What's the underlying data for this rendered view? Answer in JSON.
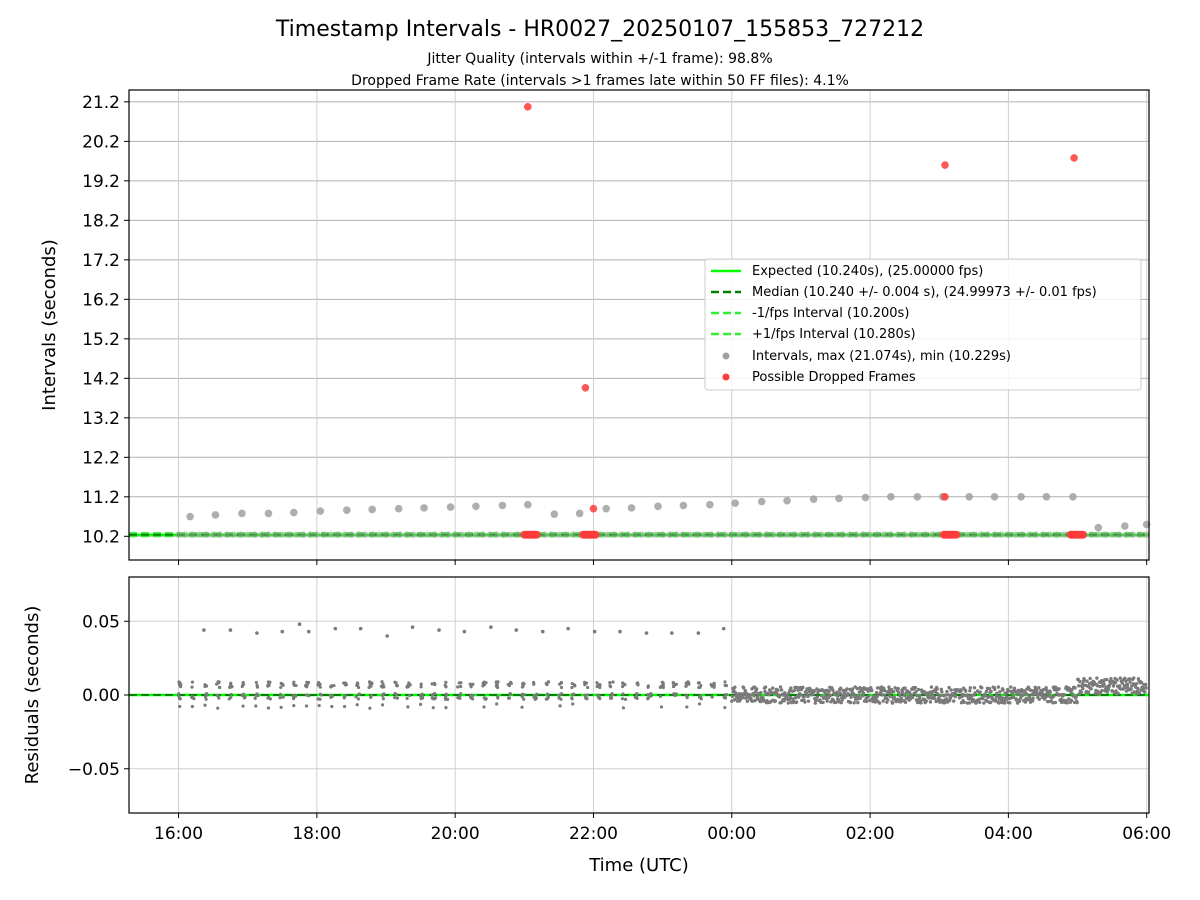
{
  "title": "Timestamp Intervals - HR0027_20250107_155853_727212",
  "subtitle_lines": [
    "Jitter Quality (intervals within +/-1 frame): 98.8%",
    "Dropped Frame Rate (intervals >1 frames late within 50 FF files): 4.1%"
  ],
  "colors": {
    "expected": "#00ff00",
    "median": "#008000",
    "fps_interval": "#33ee33",
    "intervals": "#a0a0a0",
    "dropped": "#ff3b3b",
    "residuals": "#7a7a7a",
    "grid": "#b0b0b0"
  },
  "chart_data": [
    {
      "type": "scatter",
      "panel": "top",
      "xlabel": "",
      "ylabel": "Intervals (seconds)",
      "ylim": [
        9.6,
        21.5
      ],
      "yticks": [
        "10.2",
        "11.2",
        "12.2",
        "13.2",
        "14.2",
        "15.2",
        "16.2",
        "17.2",
        "18.2",
        "19.2",
        "20.2",
        "21.2"
      ],
      "grid": true,
      "legend_position": "center-right",
      "reference_lines": {
        "expected": 10.24,
        "median": 10.24,
        "minus_fps": 10.2,
        "plus_fps": 10.28
      },
      "series": [
        {
          "name": "Intervals, max (21.074s), min (10.229s)",
          "x": [
            "16:10",
            "16:32",
            "16:55",
            "17:18",
            "17:40",
            "18:03",
            "18:26",
            "18:48",
            "19:11",
            "19:33",
            "19:56",
            "20:18",
            "20:41",
            "21:03",
            "21:26",
            "21:48",
            "22:11",
            "22:33",
            "22:56",
            "23:18",
            "23:41",
            "00:03",
            "00:26",
            "00:48",
            "01:11",
            "01:33",
            "01:56",
            "02:18",
            "02:41",
            "03:03",
            "03:26",
            "03:48",
            "04:11",
            "04:33",
            "04:56",
            "05:18",
            "05:41",
            "06:00"
          ],
          "y": [
            10.7,
            10.74,
            10.78,
            10.78,
            10.8,
            10.84,
            10.86,
            10.88,
            10.9,
            10.92,
            10.94,
            10.96,
            10.98,
            11.0,
            10.76,
            10.78,
            10.9,
            10.92,
            10.96,
            10.98,
            11.0,
            11.04,
            11.08,
            11.1,
            11.14,
            11.16,
            11.18,
            11.2,
            11.2,
            11.2,
            11.2,
            11.2,
            11.2,
            11.2,
            11.2,
            10.42,
            10.46,
            10.5
          ]
        },
        {
          "name": "Possible Dropped Frames",
          "x": [
            "21:03",
            "21:53",
            "22:00",
            "03:05",
            "03:05",
            "04:57"
          ],
          "y": [
            21.074,
            13.96,
            10.9,
            19.6,
            11.2,
            19.78
          ]
        }
      ],
      "dropped_clusters_x": [
        "21:06",
        "21:57",
        "03:10",
        "05:00"
      ],
      "legend": {
        "expected": "Expected (10.240s), (25.00000 fps)",
        "median": "Median (10.240 +/- 0.004 s), (24.99973 +/- 0.01 fps)",
        "minus_fps": "-1/fps Interval (10.200s)",
        "plus_fps": "+1/fps Interval (10.280s)",
        "intervals": "Intervals, max (21.074s), min (10.229s)",
        "dropped": "Possible Dropped Frames"
      }
    },
    {
      "type": "scatter",
      "panel": "bottom",
      "xlabel": "Time (UTC)",
      "ylabel": "Residuals (seconds)",
      "ylim": [
        -0.08,
        0.08
      ],
      "yticks": [
        "0.05",
        "0.00",
        "−0.05"
      ],
      "xticks": [
        "16:00",
        "18:00",
        "20:00",
        "22:00",
        "00:00",
        "02:00",
        "04:00",
        "06:00"
      ],
      "grid": true,
      "series": [
        {
          "name": "",
          "x": [
            "16:22",
            "16:45",
            "17:08",
            "17:30",
            "17:45",
            "17:53",
            "18:16",
            "18:38",
            "19:01",
            "19:23",
            "19:46",
            "20:08",
            "20:31",
            "20:53",
            "21:16",
            "21:38",
            "22:01",
            "22:23",
            "22:46",
            "23:08",
            "23:31",
            "23:53"
          ],
          "y": [
            0.044,
            0.044,
            0.042,
            0.043,
            0.048,
            0.043,
            0.045,
            0.045,
            0.04,
            0.046,
            0.044,
            0.043,
            0.046,
            0.044,
            0.043,
            0.045,
            0.043,
            0.043,
            0.042,
            0.042,
            0.042,
            0.045
          ]
        }
      ]
    }
  ]
}
